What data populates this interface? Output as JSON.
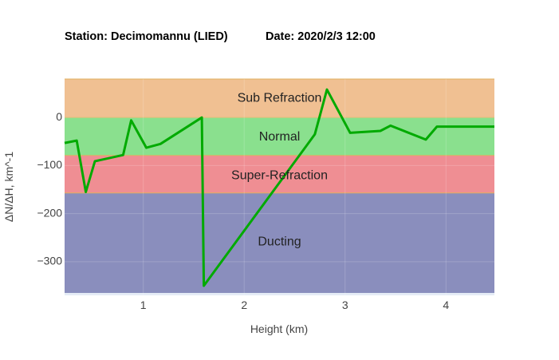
{
  "header": {
    "station": "Station: Decimomannu (LIED)",
    "date": "Date: 2020/2/3 12:00"
  },
  "chart_data": {
    "type": "line",
    "xlabel": "Height (km)",
    "ylabel": "ΔN/ΔH, km^-1",
    "xlim": [
      0.22,
      4.48
    ],
    "ylim": [
      -370,
      80
    ],
    "x_ticks": [
      1,
      2,
      3,
      4
    ],
    "y_ticks": [
      0,
      -100,
      -200,
      -300
    ],
    "x_tick_labels": [
      "1",
      "2",
      "3",
      "4"
    ],
    "y_tick_labels": [
      "0",
      "−100",
      "−200",
      "−300"
    ],
    "bands": [
      {
        "label": "Sub Refraction",
        "y0": 0,
        "y1": 80,
        "color": "#f0c092",
        "label_y": 40,
        "label_x": 2.35
      },
      {
        "label": "Normal",
        "y0": -79,
        "y1": 0,
        "color": "#8ae08e",
        "label_y": -41,
        "label_x": 2.35
      },
      {
        "label": "Super-Refraction",
        "y0": -157,
        "y1": -79,
        "color": "#ef8e93",
        "label_y": -121,
        "label_x": 2.35
      },
      {
        "label": "Ducting",
        "y0": -365,
        "y1": -157,
        "color": "#8a8ebd",
        "label_y": -259,
        "label_x": 2.35
      }
    ],
    "series": [
      {
        "color": "#00aa00",
        "x": [
          0.22,
          0.34,
          0.43,
          0.52,
          0.8,
          0.88,
          1.03,
          1.17,
          1.58,
          1.6,
          2.7,
          2.82,
          3.05,
          3.35,
          3.45,
          3.8,
          3.91,
          4.48
        ],
        "y": [
          -53,
          -48,
          -155,
          -91,
          -78,
          -6,
          -63,
          -55,
          0,
          -350,
          -35,
          58,
          -32,
          -28,
          -17,
          -46,
          -19,
          -19
        ]
      }
    ]
  }
}
